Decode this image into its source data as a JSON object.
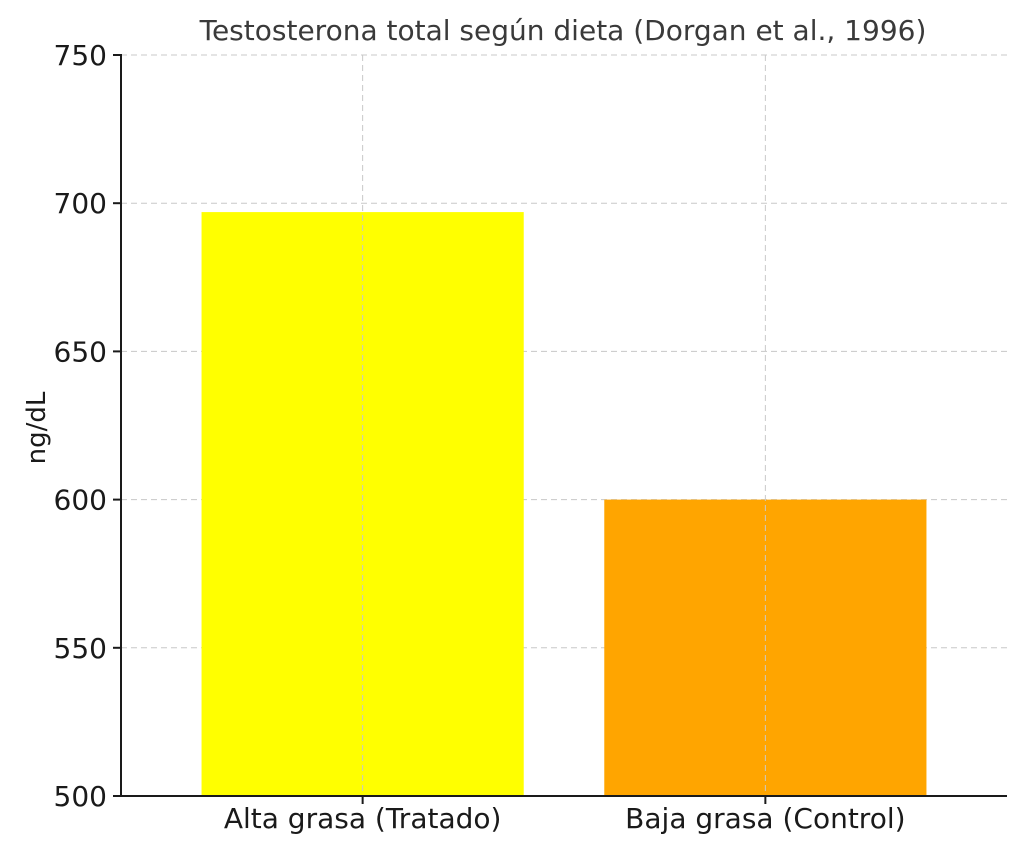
{
  "chart_data": {
    "type": "bar",
    "title": "Testosterona total según dieta (Dorgan et al., 1996)",
    "xlabel": "",
    "ylabel": "ng/dL",
    "categories": [
      "Alta grasa (Tratado)",
      "Baja grasa (Control)"
    ],
    "values": [
      697,
      600
    ],
    "colors": [
      "#ffff00",
      "#ffa500"
    ],
    "ylim": [
      500,
      750
    ],
    "yticks": [
      500,
      550,
      600,
      650,
      700,
      750
    ],
    "grid": true
  }
}
